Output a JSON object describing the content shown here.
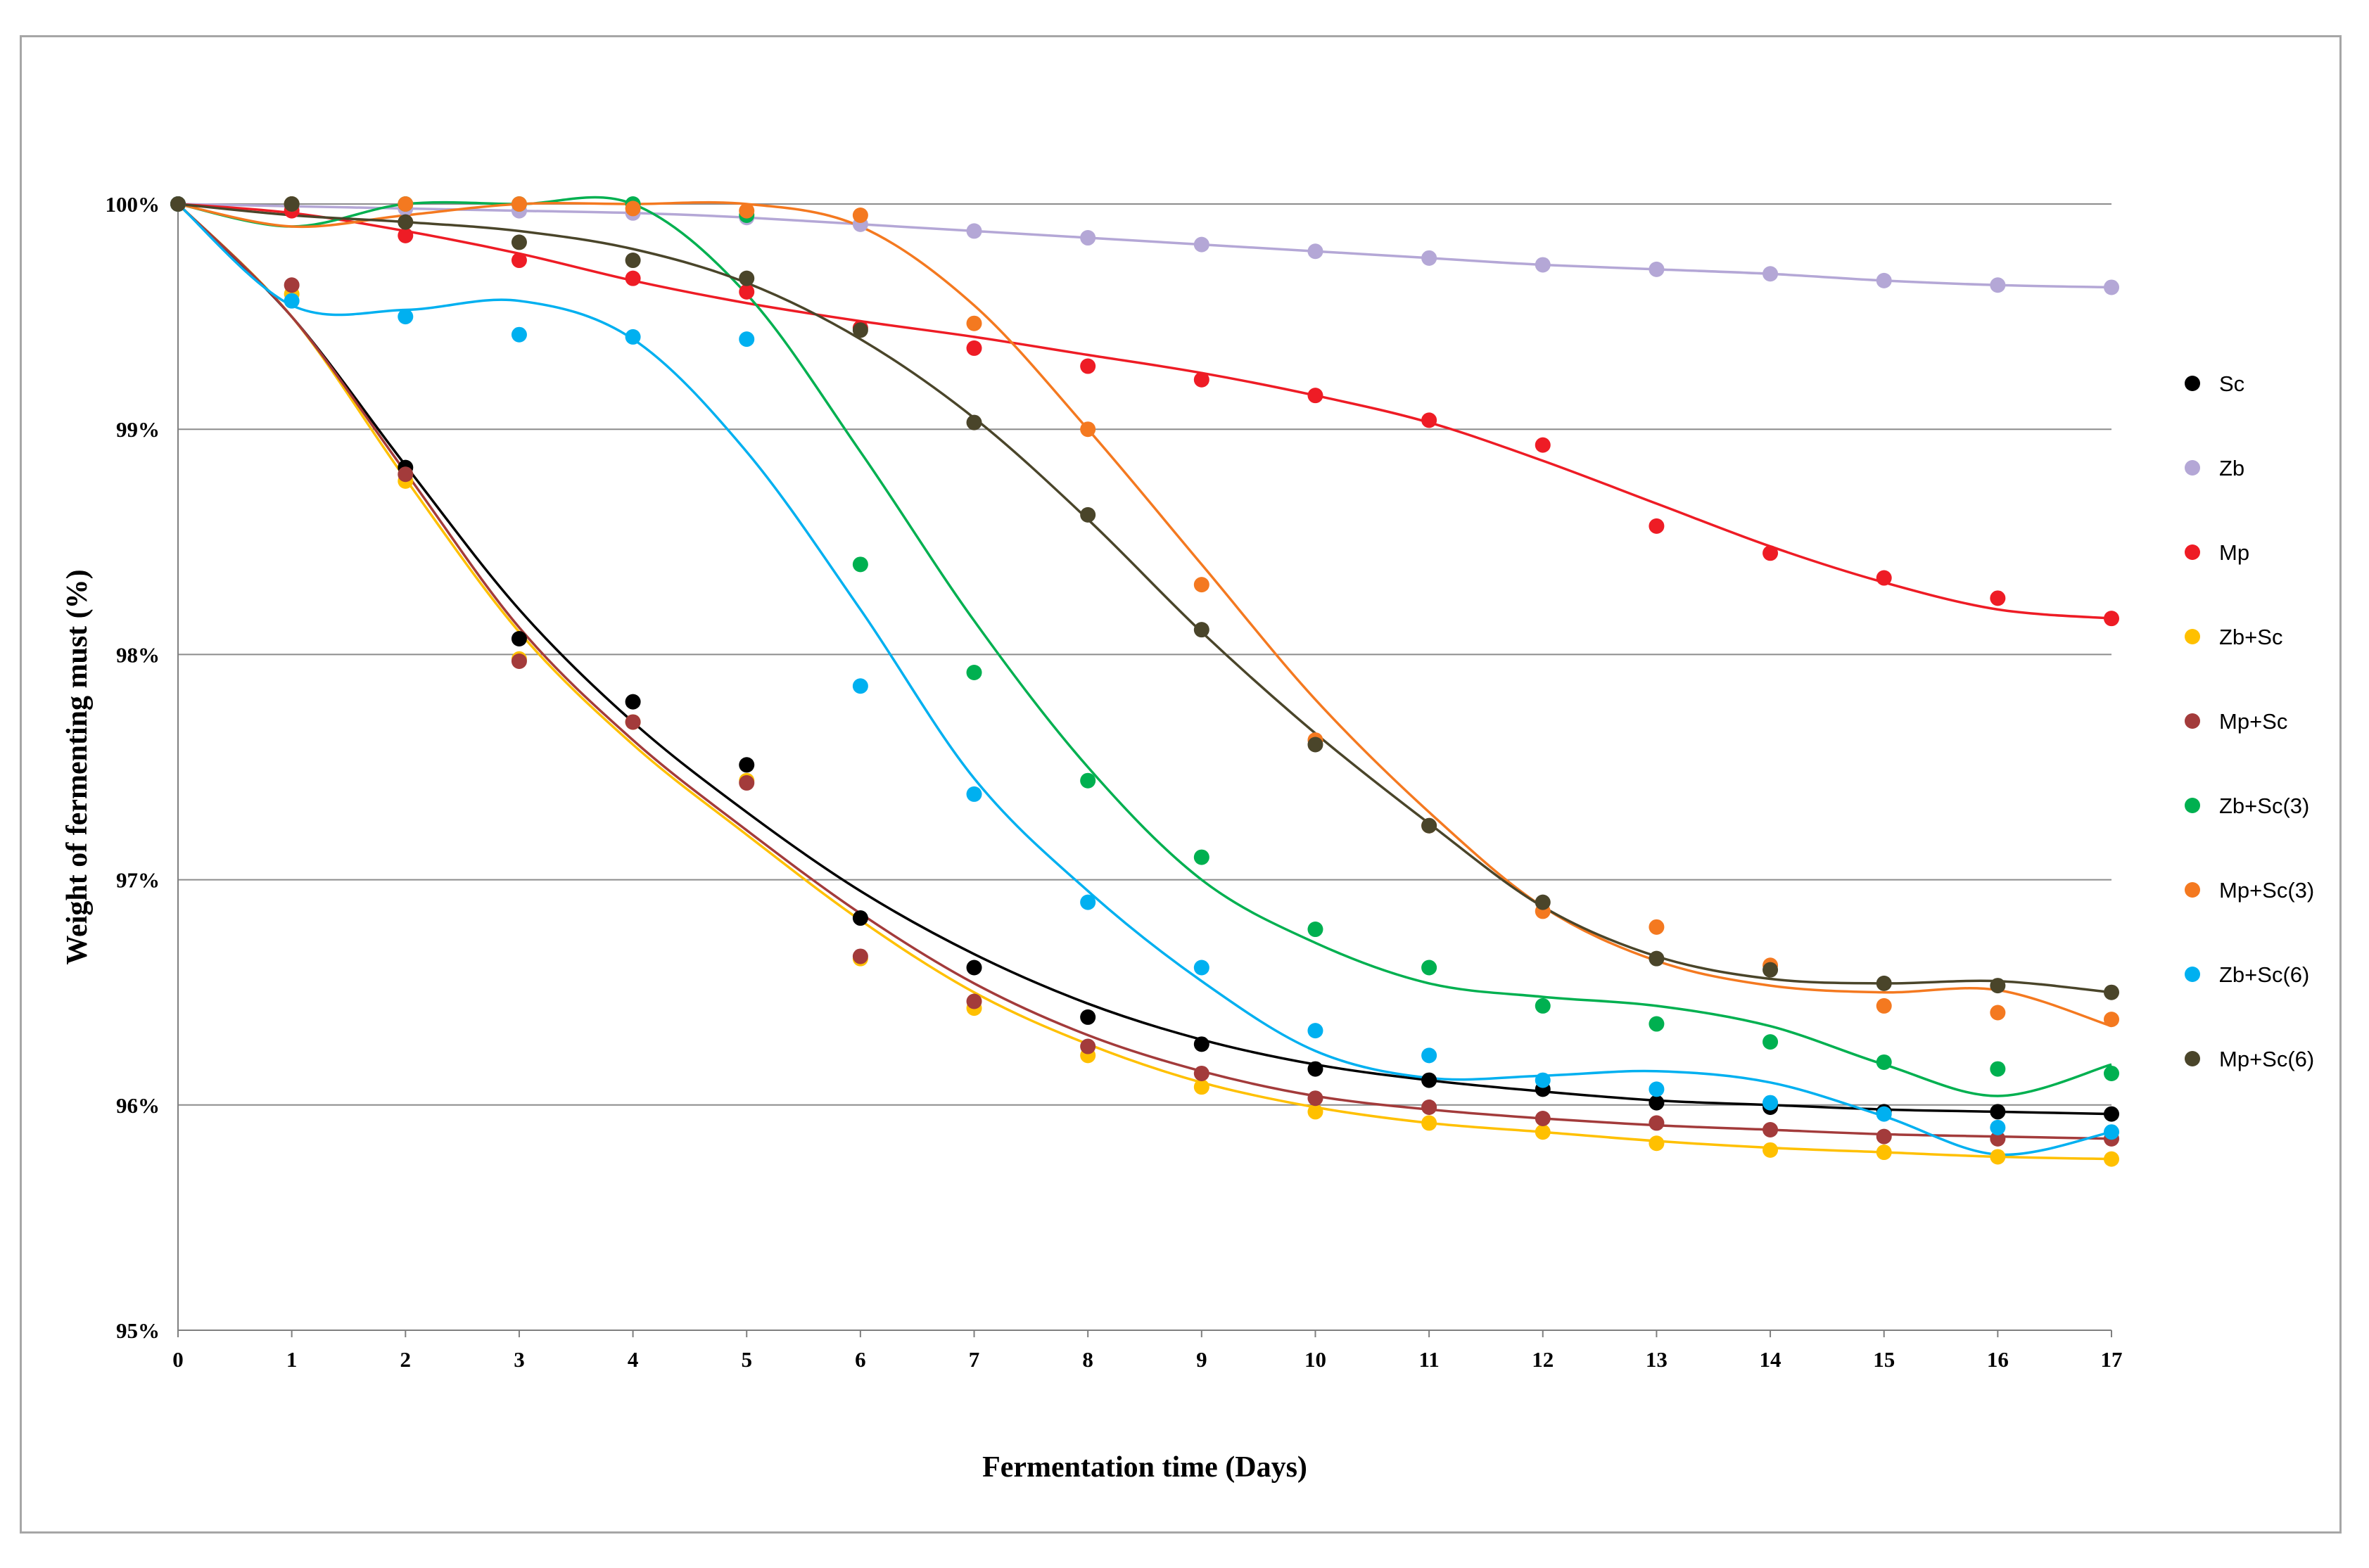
{
  "chart_data": {
    "type": "scatter",
    "title": "",
    "xlabel": "Fermentation time (Days)",
    "ylabel": "Weight of fermenting must (%)",
    "xlim": [
      0,
      17
    ],
    "ylim": [
      95,
      100
    ],
    "x_ticks": [
      "0",
      "1",
      "2",
      "3",
      "4",
      "5",
      "6",
      "7",
      "8",
      "9",
      "10",
      "11",
      "12",
      "13",
      "14",
      "15",
      "16",
      "17"
    ],
    "y_ticks": [
      {
        "value": 95,
        "label": "95%"
      },
      {
        "value": 96,
        "label": "96%"
      },
      {
        "value": 97,
        "label": "97%"
      },
      {
        "value": 98,
        "label": "98%"
      },
      {
        "value": 99,
        "label": "99%"
      },
      {
        "value": 100,
        "label": "100%"
      }
    ],
    "grid": "horizontal",
    "legend_position": "right",
    "x": [
      0,
      1,
      2,
      3,
      4,
      5,
      6,
      7,
      8,
      9,
      10,
      11,
      12,
      13,
      14,
      15,
      16,
      17
    ],
    "series": [
      {
        "name": "Sc",
        "color": "#000000",
        "values": [
          100,
          100,
          98.83,
          98.07,
          97.79,
          97.51,
          96.83,
          96.61,
          96.39,
          96.27,
          96.16,
          96.11,
          96.07,
          96.01,
          95.99,
          95.97,
          95.97,
          95.96
        ],
        "trend": [
          100,
          99.5,
          98.84,
          98.2,
          97.7,
          97.3,
          96.95,
          96.67,
          96.45,
          96.29,
          96.18,
          96.11,
          96.06,
          96.02,
          96.0,
          95.98,
          95.97,
          95.96
        ]
      },
      {
        "name": "Zb",
        "color": "#b4a7d6",
        "values": [
          100,
          99.99,
          99.98,
          99.97,
          99.96,
          99.94,
          99.91,
          99.88,
          99.85,
          99.82,
          99.79,
          99.76,
          99.73,
          99.71,
          99.69,
          99.66,
          99.64,
          99.63
        ],
        "trend": [
          100,
          99.99,
          99.98,
          99.97,
          99.96,
          99.94,
          99.91,
          99.88,
          99.85,
          99.82,
          99.79,
          99.76,
          99.73,
          99.71,
          99.69,
          99.66,
          99.64,
          99.63
        ]
      },
      {
        "name": "Mp",
        "color": "#ee1c25",
        "values": [
          100,
          99.97,
          99.86,
          99.75,
          99.67,
          99.61,
          99.45,
          99.36,
          99.28,
          99.22,
          99.15,
          99.04,
          98.93,
          98.57,
          98.45,
          98.34,
          98.25,
          98.16
        ],
        "trend": [
          100,
          99.96,
          99.88,
          99.78,
          99.66,
          99.56,
          99.48,
          99.41,
          99.33,
          99.25,
          99.15,
          99.03,
          98.86,
          98.67,
          98.48,
          98.32,
          98.2,
          98.16
        ]
      },
      {
        "name": "Zb+Sc",
        "color": "#ffc000",
        "values": [
          100,
          99.6,
          98.77,
          97.98,
          97.7,
          97.44,
          96.65,
          96.43,
          96.22,
          96.08,
          95.97,
          95.92,
          95.88,
          95.83,
          95.8,
          95.79,
          95.77,
          95.76
        ],
        "trend": [
          100,
          99.5,
          98.78,
          98.1,
          97.6,
          97.2,
          96.82,
          96.5,
          96.27,
          96.1,
          95.99,
          95.92,
          95.88,
          95.84,
          95.81,
          95.79,
          95.77,
          95.76
        ]
      },
      {
        "name": "Mp+Sc",
        "color": "#a33b3b",
        "values": [
          100,
          99.64,
          98.8,
          97.97,
          97.7,
          97.43,
          96.66,
          96.46,
          96.26,
          96.14,
          96.03,
          95.99,
          95.94,
          95.92,
          95.89,
          95.86,
          95.85,
          95.85
        ],
        "trend": [
          100,
          99.5,
          98.81,
          98.12,
          97.62,
          97.22,
          96.85,
          96.54,
          96.31,
          96.15,
          96.04,
          95.98,
          95.94,
          95.91,
          95.89,
          95.87,
          95.86,
          95.85
        ]
      },
      {
        "name": "Zb+Sc(3)",
        "color": "#00b050",
        "values": [
          100,
          100,
          100,
          100,
          100,
          99.95,
          98.4,
          97.92,
          97.44,
          97.1,
          96.78,
          96.61,
          96.44,
          96.36,
          96.28,
          96.19,
          96.16,
          96.14
        ],
        "trend": [
          100,
          99.9,
          100,
          100,
          100,
          99.6,
          98.9,
          98.15,
          97.5,
          97.0,
          96.72,
          96.54,
          96.48,
          96.44,
          96.35,
          96.18,
          96.04,
          96.18
        ]
      },
      {
        "name": "Mp+Sc(3)",
        "color": "#f47920",
        "values": [
          100,
          100,
          100,
          100,
          99.98,
          99.97,
          99.95,
          99.47,
          99.0,
          98.31,
          97.62,
          97.24,
          96.86,
          96.79,
          96.62,
          96.44,
          96.41,
          96.38
        ],
        "trend": [
          100,
          99.9,
          99.95,
          100,
          100,
          100,
          99.9,
          99.55,
          99.0,
          98.4,
          97.8,
          97.3,
          96.88,
          96.64,
          96.53,
          96.5,
          96.51,
          96.35
        ]
      },
      {
        "name": "Zb+Sc(6)",
        "color": "#00b0f0",
        "values": [
          100,
          99.57,
          99.5,
          99.42,
          99.41,
          99.4,
          97.86,
          97.38,
          96.9,
          96.61,
          96.33,
          96.22,
          96.11,
          96.07,
          96.01,
          95.96,
          95.9,
          95.88
        ],
        "trend": [
          100,
          99.55,
          99.53,
          99.57,
          99.4,
          98.9,
          98.2,
          97.45,
          96.95,
          96.55,
          96.24,
          96.12,
          96.13,
          96.15,
          96.1,
          95.95,
          95.78,
          95.88
        ]
      },
      {
        "name": "Mp+Sc(6)",
        "color": "#4a452a",
        "values": [
          100,
          100,
          99.92,
          99.83,
          99.75,
          99.67,
          99.44,
          99.03,
          98.62,
          98.11,
          97.6,
          97.24,
          96.9,
          96.65,
          96.6,
          96.54,
          96.53,
          96.5
        ],
        "trend": [
          100,
          99.95,
          99.92,
          99.88,
          99.8,
          99.65,
          99.4,
          99.05,
          98.6,
          98.1,
          97.65,
          97.25,
          96.88,
          96.66,
          96.56,
          96.54,
          96.55,
          96.5
        ]
      }
    ]
  }
}
